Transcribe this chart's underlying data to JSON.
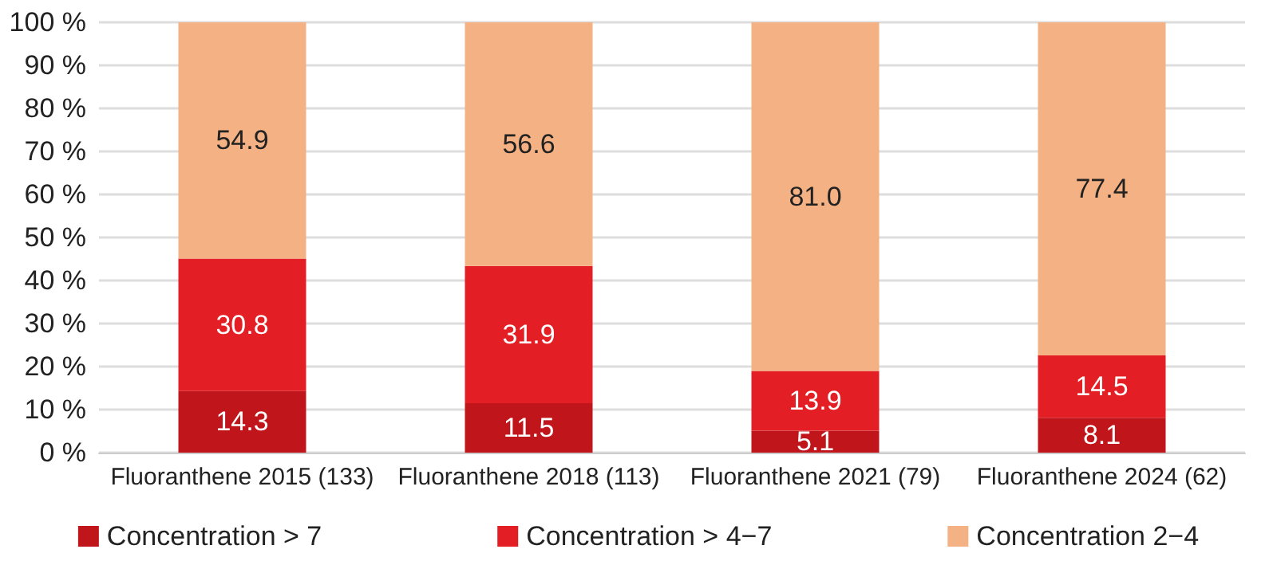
{
  "chart_data": {
    "type": "bar",
    "stacked": true,
    "categories": [
      "Fluoranthene 2015 (133)",
      "Fluoranthene 2018 (113)",
      "Fluoranthene 2021 (79)",
      "Fluoranthene 2024 (62)"
    ],
    "series": [
      {
        "name": "Concentration > 7",
        "color": "#c0161b",
        "values": [
          14.3,
          11.5,
          5.1,
          8.1
        ],
        "value_labels": [
          "14.3",
          "11.5",
          "5.1",
          "8.1"
        ]
      },
      {
        "name": "Concentration > 4−7",
        "color": "#e31e24",
        "values": [
          30.8,
          31.9,
          13.9,
          14.5
        ],
        "value_labels": [
          "30.8",
          "31.9",
          "13.9",
          "14.5"
        ]
      },
      {
        "name": "Concentration 2−4",
        "color": "#f4b183",
        "values": [
          54.9,
          56.6,
          81.0,
          77.4
        ],
        "value_labels": [
          "54.9",
          "56.6",
          "81.0",
          "77.4"
        ]
      }
    ],
    "ylim": [
      0,
      100
    ],
    "yticks": [
      {
        "value": 0,
        "label": "0 %"
      },
      {
        "value": 10,
        "label": "10 %"
      },
      {
        "value": 20,
        "label": "20 %"
      },
      {
        "value": 30,
        "label": "30 %"
      },
      {
        "value": 40,
        "label": "40 %"
      },
      {
        "value": 50,
        "label": "50 %"
      },
      {
        "value": 60,
        "label": "60 %"
      },
      {
        "value": 70,
        "label": "70 %"
      },
      {
        "value": 80,
        "label": "80 %"
      },
      {
        "value": 90,
        "label": "90 %"
      },
      {
        "value": 100,
        "label": "100 %"
      }
    ],
    "grid": "y",
    "legend": "bottom"
  }
}
